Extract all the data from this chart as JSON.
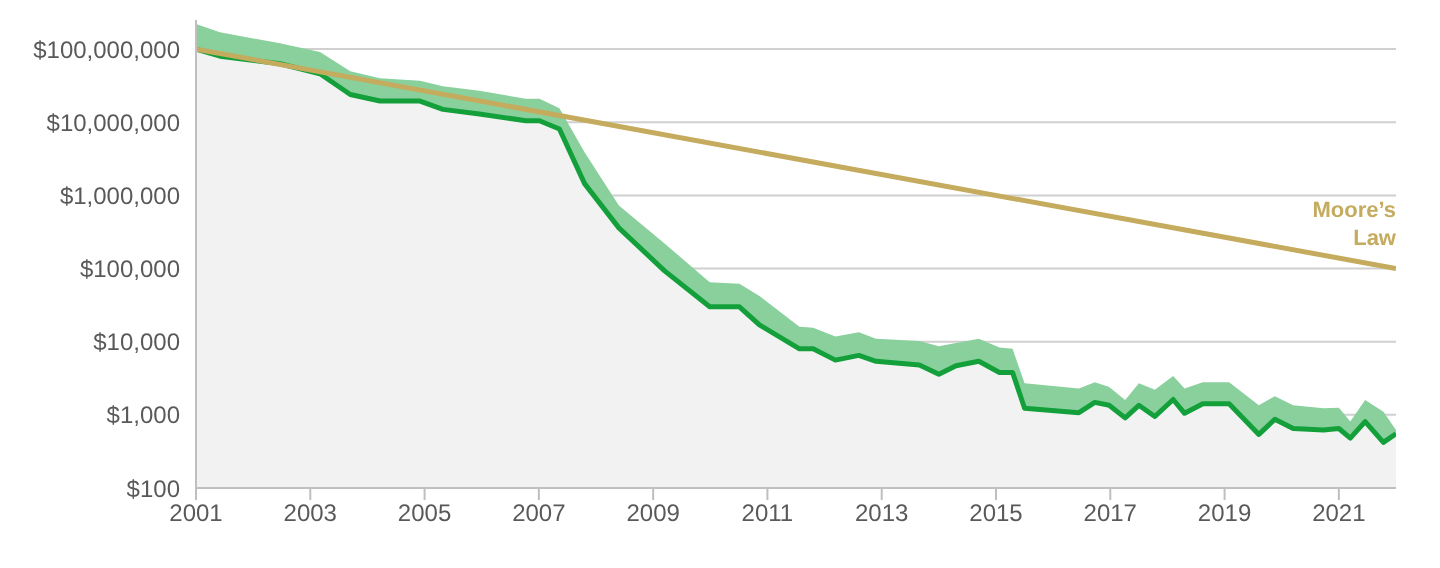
{
  "chart_data": {
    "type": "line",
    "log": "y",
    "grid": "y",
    "legend": false,
    "marker": "none",
    "line_style": "solid",
    "xlim": [
      2001,
      2022
    ],
    "xticks": [
      2001,
      2003,
      2005,
      2007,
      2009,
      2011,
      2013,
      2015,
      2017,
      2019,
      2021
    ],
    "ylim": [
      100,
      250000000
    ],
    "yticks": [
      {
        "value": 100,
        "label": "$100"
      },
      {
        "value": 1000,
        "label": "$1,000"
      },
      {
        "value": 10000,
        "label": "$10,000"
      },
      {
        "value": 100000,
        "label": "$100,000"
      },
      {
        "value": 1000000,
        "label": "$1,000,000"
      },
      {
        "value": 10000000,
        "label": "$10,000,000"
      },
      {
        "value": 100000000,
        "label": "$100,000,000"
      }
    ],
    "series": [
      {
        "type": "area",
        "color": "#13a03b",
        "x": [
          2001.0,
          2001.42,
          2002.47,
          2003.17,
          2003.7,
          2004.22,
          2004.92,
          2005.32,
          2005.96,
          2006.77,
          2007.01,
          2007.36,
          2007.8,
          2008.4,
          2009.2,
          2009.99,
          2010.51,
          2010.86,
          2011.56,
          2011.8,
          2012.19,
          2012.6,
          2012.9,
          2013.66,
          2014.0,
          2014.3,
          2014.7,
          2015.06,
          2015.29,
          2015.5,
          2016.45,
          2016.73,
          2016.98,
          2017.26,
          2017.5,
          2017.78,
          2018.1,
          2018.3,
          2018.62,
          2019.08,
          2019.6,
          2019.88,
          2020.2,
          2020.73,
          2021.0,
          2021.2,
          2021.46,
          2021.78,
          2022.0
        ],
        "values": [
          100000000,
          80000000,
          63000000,
          46000000,
          24000000,
          19500000,
          19500000,
          15000000,
          13000000,
          10500000,
          10500000,
          8100000,
          1450000,
          360000,
          93000,
          30000,
          30000,
          17000,
          8000,
          8000,
          5600,
          6500,
          5400,
          4800,
          3600,
          4700,
          5400,
          3800,
          3800,
          1230,
          1070,
          1480,
          1350,
          910,
          1350,
          950,
          1620,
          1050,
          1420,
          1420,
          540,
          870,
          650,
          620,
          650,
          480,
          810,
          420,
          550
        ],
        "lower": [
          100000000,
          80000000,
          63000000,
          46000000,
          24000000,
          19500000,
          19500000,
          15000000,
          13000000,
          10500000,
          10500000,
          8100000,
          1450000,
          360000,
          93000,
          30000,
          30000,
          17000,
          8000,
          8000,
          5600,
          6500,
          5400,
          4800,
          3600,
          4700,
          5400,
          3800,
          3800,
          1230,
          1070,
          1480,
          1350,
          910,
          1350,
          950,
          1620,
          1050,
          1420,
          1420,
          540,
          870,
          650,
          620,
          650,
          480,
          810,
          420,
          550
        ],
        "upper": [
          220000000,
          170000000,
          120000000,
          91000000,
          50000000,
          40000000,
          37000000,
          31000000,
          27000000,
          21000000,
          21000000,
          15500000,
          3900000,
          730000,
          220000,
          65000,
          62000,
          42000,
          16000,
          15500,
          11800,
          13500,
          11000,
          10200,
          8700,
          9600,
          11000,
          8300,
          8000,
          2700,
          2300,
          2800,
          2400,
          1600,
          2700,
          2200,
          3400,
          2300,
          2800,
          2800,
          1350,
          1800,
          1350,
          1230,
          1250,
          810,
          1600,
          1100,
          620
        ]
      },
      {
        "name": "Moore’s Law",
        "color": "#c5ab5e",
        "x": [
          2001,
          2022
        ],
        "values": [
          100000000,
          100000
        ]
      }
    ]
  }
}
